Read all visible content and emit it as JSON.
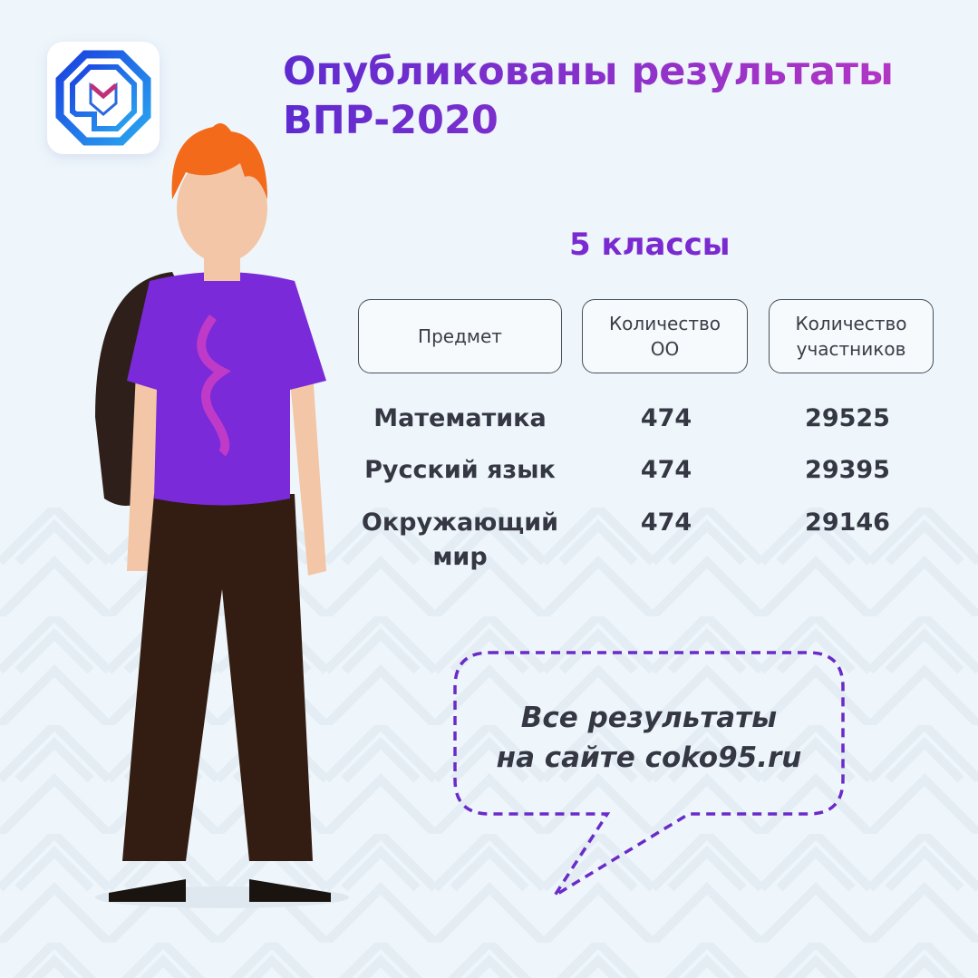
{
  "header": {
    "title_line1": "Опубликованы результаты",
    "title_line2": "ВПР-2020",
    "logo_icon": "coko-logo-icon"
  },
  "grade": "5 классы",
  "table": {
    "columns": [
      "Предмет",
      "Количество ОО",
      "Количество участников"
    ],
    "column_lines": [
      [
        "Предмет"
      ],
      [
        "Количество",
        "ОО"
      ],
      [
        "Количество",
        "участников"
      ]
    ],
    "rows": [
      {
        "subject": "Математика",
        "subject_lines": [
          "Математика"
        ],
        "schools": "474",
        "participants": "29525"
      },
      {
        "subject": "Русский язык",
        "subject_lines": [
          "Русский язык"
        ],
        "schools": "474",
        "participants": "29395"
      },
      {
        "subject": "Окружающий мир",
        "subject_lines": [
          "Окружающий",
          "мир"
        ],
        "schools": "474",
        "participants": "29146"
      }
    ]
  },
  "callout": {
    "line1": "Все результаты",
    "line2": "на сайте coko95.ru"
  },
  "colors": {
    "accent_purple": "#7a2ad0",
    "title_gradient_start": "#5e2bd0",
    "title_gradient_end": "#b236c4",
    "background": "#eef6fb",
    "logo_blue": "#1f4fe0"
  }
}
